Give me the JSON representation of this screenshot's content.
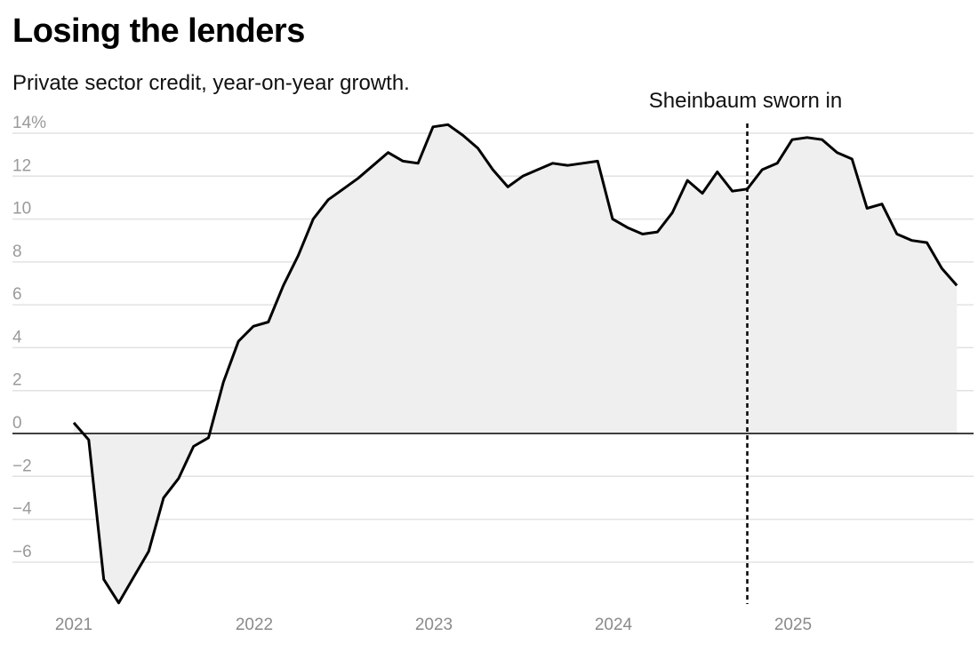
{
  "title": "Losing the lenders",
  "subtitle": "Private sector credit, year-on-year growth.",
  "chart_data": {
    "type": "area",
    "x_ticks": [
      "2021",
      "2022",
      "2023",
      "2024",
      "2025"
    ],
    "y_ticks": [
      {
        "value": 14,
        "label": "14%"
      },
      {
        "value": 12,
        "label": "12"
      },
      {
        "value": 10,
        "label": "10"
      },
      {
        "value": 8,
        "label": "8"
      },
      {
        "value": 6,
        "label": "6"
      },
      {
        "value": 4,
        "label": "4"
      },
      {
        "value": 2,
        "label": "2"
      },
      {
        "value": 0,
        "label": "0"
      },
      {
        "value": -2,
        "label": "−2"
      },
      {
        "value": -4,
        "label": "−4"
      },
      {
        "value": -6,
        "label": "−6"
      }
    ],
    "ylim": [
      -8,
      14.5
    ],
    "xlim": [
      2021,
      2026.0
    ],
    "grid": true,
    "annotation": {
      "label": "Sheinbaum sworn in",
      "x": 2024.75
    },
    "line_color": "#000000",
    "fill_color": "#efefef",
    "x": [
      2021.0,
      2021.083,
      2021.167,
      2021.25,
      2021.333,
      2021.417,
      2021.5,
      2021.583,
      2021.667,
      2021.75,
      2021.833,
      2021.917,
      2022.0,
      2022.083,
      2022.167,
      2022.25,
      2022.333,
      2022.417,
      2022.5,
      2022.583,
      2022.667,
      2022.75,
      2022.833,
      2022.917,
      2023.0,
      2023.083,
      2023.167,
      2023.25,
      2023.333,
      2023.417,
      2023.5,
      2023.583,
      2023.667,
      2023.75,
      2023.833,
      2023.917,
      2024.0,
      2024.083,
      2024.167,
      2024.25,
      2024.333,
      2024.417,
      2024.5,
      2024.583,
      2024.667,
      2024.75,
      2024.833,
      2024.917,
      2025.0,
      2025.083,
      2025.167,
      2025.25,
      2025.333,
      2025.417,
      2025.5,
      2025.583,
      2025.667,
      2025.75,
      2025.833,
      2025.917
    ],
    "values": [
      0.5,
      -0.3,
      -6.8,
      -7.9,
      -6.7,
      -5.5,
      -3.0,
      -2.1,
      -0.6,
      -0.2,
      2.4,
      4.3,
      5.0,
      5.2,
      6.9,
      8.3,
      10.0,
      10.9,
      11.4,
      11.9,
      12.5,
      13.1,
      12.7,
      12.6,
      14.3,
      14.4,
      13.9,
      13.3,
      12.3,
      11.5,
      12.0,
      12.3,
      12.6,
      12.5,
      12.6,
      12.7,
      10.0,
      9.6,
      9.3,
      9.4,
      10.3,
      11.8,
      11.2,
      12.2,
      11.3,
      11.4,
      12.3,
      12.6,
      13.7,
      13.8,
      13.7,
      13.1,
      12.8,
      10.5,
      10.7,
      9.3,
      9.0,
      8.9,
      7.7,
      6.9
    ]
  }
}
